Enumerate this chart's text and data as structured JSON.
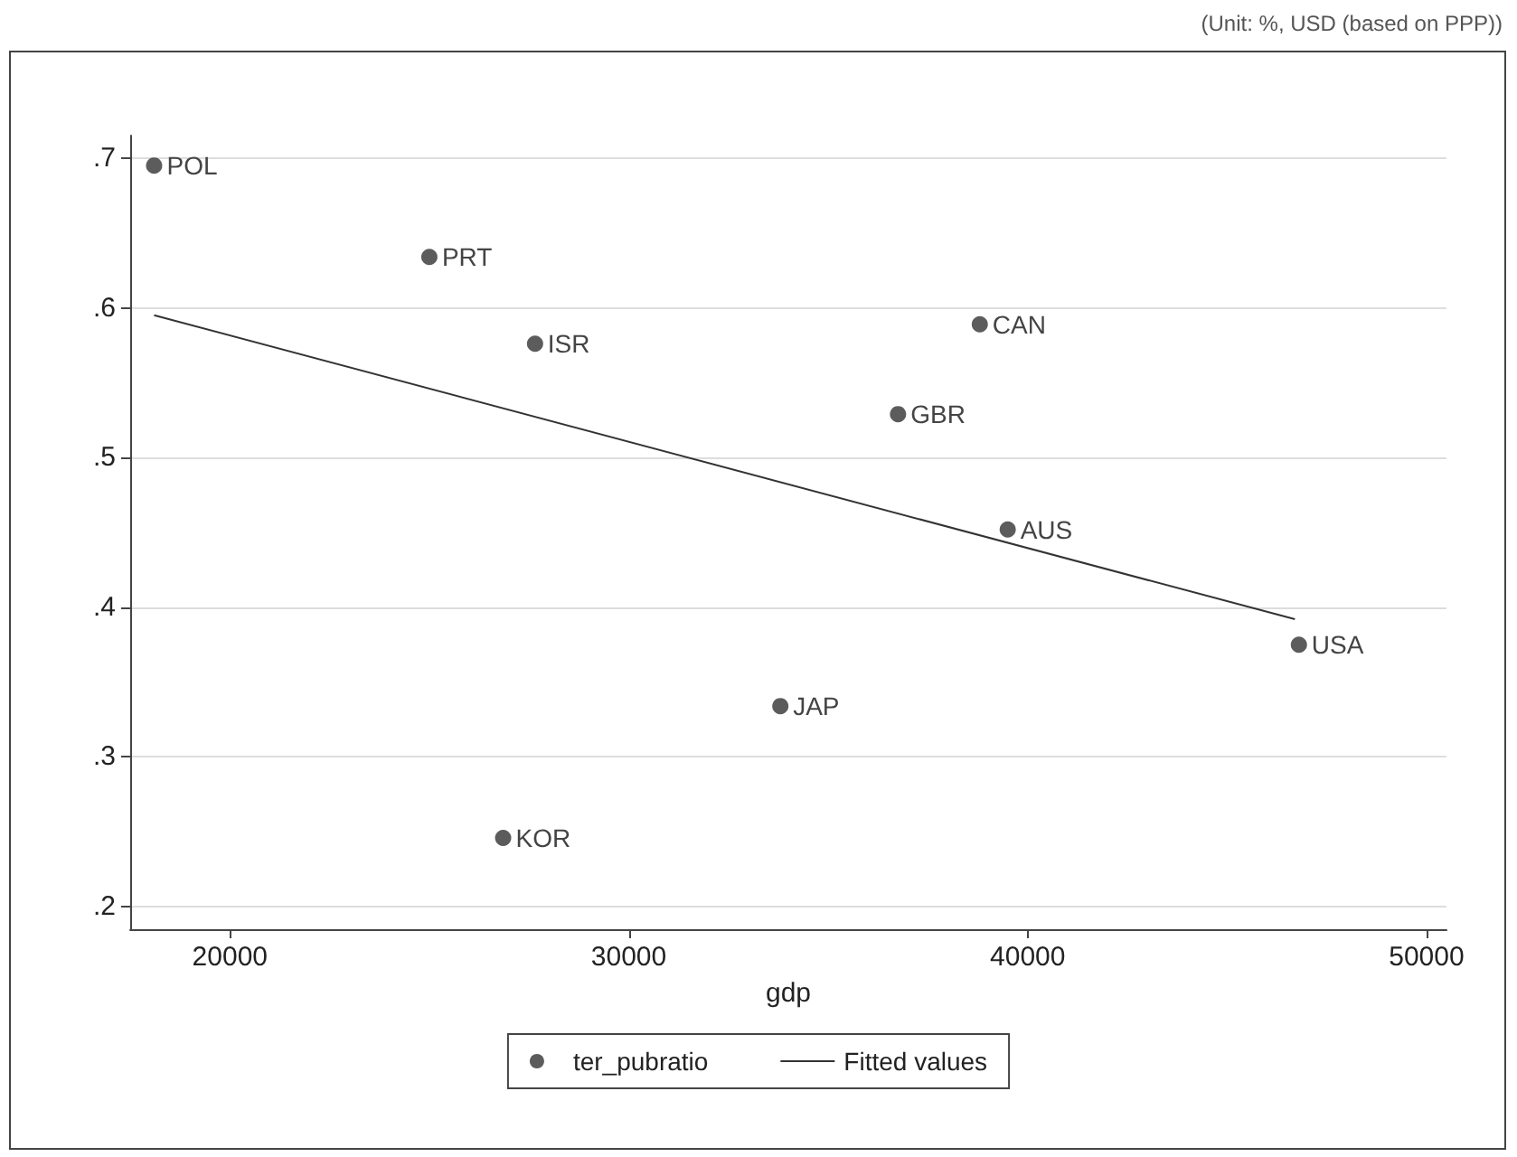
{
  "chart_data": {
    "type": "scatter",
    "xlabel": "gdp",
    "annotations": [
      "(Unit: %, USD (based on PPP))",
      {
        "text": "POL",
        "x": 18100,
        "y": 0.695
      },
      {
        "text": "PRT",
        "x": 25000,
        "y": 0.634
      },
      {
        "text": "ISR",
        "x": 27650,
        "y": 0.576
      },
      {
        "text": "CAN",
        "x": 38800,
        "y": 0.589
      },
      {
        "text": "GBR",
        "x": 36750,
        "y": 0.529
      },
      {
        "text": "AUS",
        "x": 39500,
        "y": 0.452
      },
      {
        "text": "USA",
        "x": 46800,
        "y": 0.375
      },
      {
        "text": "JAP",
        "x": 33800,
        "y": 0.334
      },
      {
        "text": "KOR",
        "x": 26850,
        "y": 0.246
      }
    ],
    "series": [
      {
        "name": "ter_pubratio",
        "color": "#333333",
        "marker": "circle",
        "x": [
          18100,
          25000,
          27650,
          38800,
          36750,
          39500,
          46800,
          33800,
          26850
        ],
        "values": [
          0.695,
          0.634,
          0.576,
          0.589,
          0.529,
          0.452,
          0.375,
          0.334,
          0.246
        ]
      },
      {
        "name": "Fitted values",
        "type": "line",
        "color": "#333333",
        "marker": "none",
        "line_style": "solid",
        "x": [
          18100,
          46700
        ],
        "values": [
          0.595,
          0.392
        ]
      }
    ],
    "xlim": [
      17500,
      50500
    ],
    "xticks": [
      20000,
      30000,
      40000,
      50000
    ],
    "ylim": [
      0.185,
      0.715
    ],
    "yticks": [
      {
        "value": 0.2,
        "label": ".2"
      },
      {
        "value": 0.3,
        "label": ".3"
      },
      {
        "value": 0.4,
        "label": ".4"
      },
      {
        "value": 0.5,
        "label": ".5"
      },
      {
        "value": 0.6,
        "label": ".6"
      },
      {
        "value": 0.7,
        "label": ".7"
      }
    ],
    "grid": "y",
    "legend": "bottom"
  }
}
